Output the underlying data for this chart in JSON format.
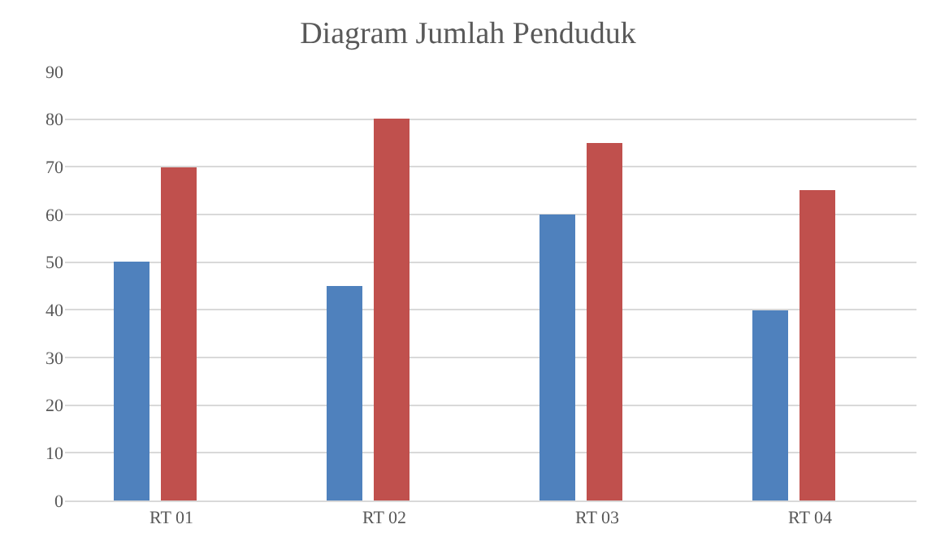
{
  "chart_data": {
    "type": "bar",
    "title": "Diagram Jumlah Penduduk",
    "categories": [
      "RT 01",
      "RT 02",
      "RT 03",
      "RT 04"
    ],
    "series": [
      {
        "color": "#4f81bd",
        "values": [
          50,
          45,
          60,
          40
        ]
      },
      {
        "color": "#c0504d",
        "values": [
          70,
          80,
          75,
          65
        ]
      }
    ],
    "ylim": [
      0,
      90
    ],
    "yticks": [
      0,
      10,
      20,
      30,
      40,
      50,
      60,
      70,
      80,
      90
    ],
    "grid": "y"
  }
}
